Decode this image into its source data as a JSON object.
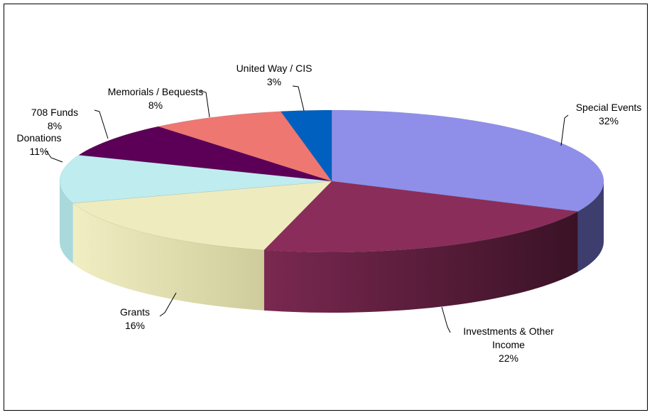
{
  "chart_data": {
    "type": "pie3d",
    "categories": [
      "Special Events",
      "Investments & Other Income",
      "Grants",
      "Donations",
      "708 Funds",
      "Memorials / Bequests",
      "United Way / CIS"
    ],
    "values": [
      32,
      22,
      16,
      11,
      8,
      8,
      3
    ],
    "value_labels": [
      "32%",
      "22%",
      "16%",
      "11%",
      "8%",
      "8%",
      "3%"
    ],
    "colors": [
      "#8f8fea",
      "#8b2d5a",
      "#eeecbe",
      "#bfecee",
      "#5c0057",
      "#ee7772",
      "#0060c0"
    ]
  }
}
